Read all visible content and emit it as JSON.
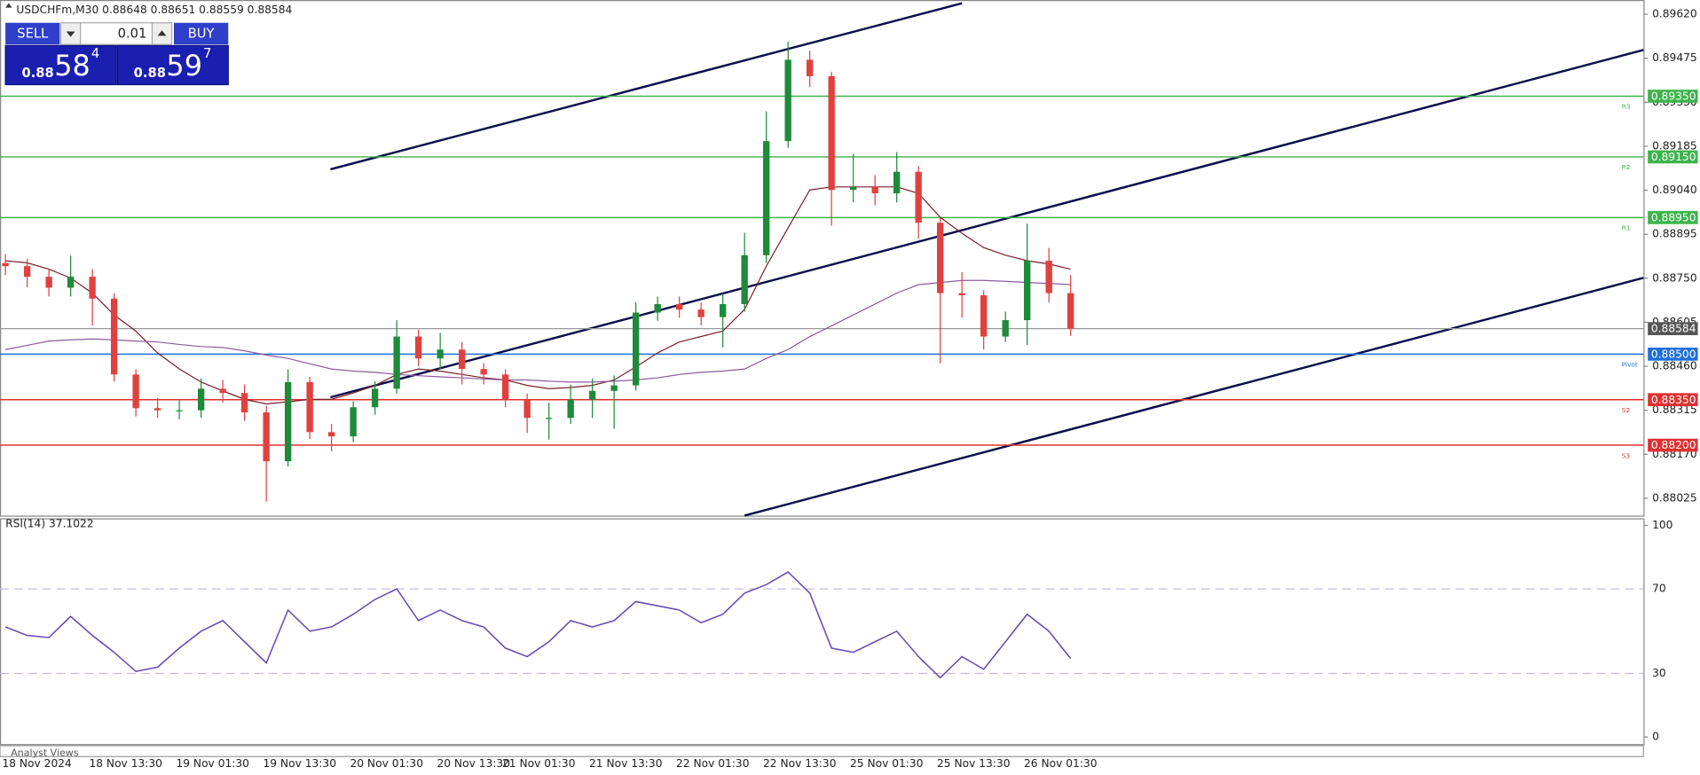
{
  "header": {
    "symbol": "USDCHFm,M30",
    "ohlc": [
      0.88648,
      0.88651,
      0.88559,
      0.88584
    ]
  },
  "trade_panel": {
    "sell": "SELL",
    "buy": "BUY",
    "lot": "0.01",
    "sell_price": {
      "lead": "0.88",
      "main": "58",
      "frac": "4"
    },
    "buy_price": {
      "lead": "0.88",
      "main": "59",
      "frac": "7"
    }
  },
  "footer_tab": "Analyst Views",
  "chart_data": [
    {
      "type": "candlestick",
      "categories": [
        "18 Nov 2024",
        null,
        null,
        null,
        "18 Nov 13:30",
        null,
        null,
        null,
        "19 Nov 01:30",
        null,
        null,
        null,
        "19 Nov 13:30",
        null,
        null,
        null,
        "20 Nov 01:30",
        null,
        null,
        null,
        "20 Nov 13:30",
        null,
        null,
        "21 Nov 01:30",
        null,
        null,
        null,
        "21 Nov 13:30",
        null,
        null,
        null,
        "22 Nov 01:30",
        null,
        null,
        null,
        "22 Nov 13:30",
        null,
        null,
        null,
        "25 Nov 01:30",
        null,
        null,
        null,
        "25 Nov 13:30",
        null,
        null,
        null,
        "26 Nov 01:30",
        null,
        null
      ],
      "open": [
        0.888,
        0.8879,
        0.88755,
        0.88719,
        0.88755,
        0.88683,
        0.88433,
        0.88322,
        0.88315,
        0.88315,
        0.88386,
        0.88372,
        0.88308,
        0.88147,
        0.88408,
        0.88243,
        0.88229,
        0.88325,
        0.88386,
        0.88558,
        0.88486,
        0.88515,
        0.88451,
        0.88433,
        0.8835,
        0.8829,
        0.8829,
        0.8835,
        0.88379,
        0.88397,
        0.88637,
        0.88665,
        0.88647,
        0.88622,
        0.88665,
        0.88826,
        0.89202,
        0.8947,
        0.89416,
        0.89041,
        0.89051,
        0.8903,
        0.89101,
        0.88933,
        0.88701,
        0.88694,
        0.88558,
        0.88612,
        0.88808,
        0.88701
      ],
      "high": [
        0.8883,
        0.88815,
        0.8878,
        0.88825,
        0.8878,
        0.887,
        0.8845,
        0.88355,
        0.8835,
        0.8842,
        0.88415,
        0.884,
        0.8833,
        0.8845,
        0.88425,
        0.8827,
        0.88345,
        0.8841,
        0.88612,
        0.8858,
        0.8857,
        0.8854,
        0.8847,
        0.8845,
        0.8837,
        0.8834,
        0.884,
        0.8842,
        0.8843,
        0.8867,
        0.8869,
        0.8869,
        0.8867,
        0.887,
        0.889,
        0.893,
        0.8953,
        0.895,
        0.8943,
        0.8916,
        0.8909,
        0.89166,
        0.8912,
        0.8895,
        0.8877,
        0.8871,
        0.8864,
        0.8893,
        0.8885,
        0.8876
      ],
      "low": [
        0.8876,
        0.8872,
        0.8869,
        0.8869,
        0.88594,
        0.8841,
        0.88295,
        0.8829,
        0.88285,
        0.8829,
        0.8834,
        0.8828,
        0.88014,
        0.8813,
        0.8822,
        0.8818,
        0.8821,
        0.883,
        0.8837,
        0.8846,
        0.8845,
        0.884,
        0.884,
        0.88325,
        0.8824,
        0.88218,
        0.8827,
        0.8829,
        0.88254,
        0.8838,
        0.8861,
        0.8862,
        0.88595,
        0.88522,
        0.8864,
        0.888,
        0.8918,
        0.8938,
        0.88923,
        0.89,
        0.8899,
        0.89,
        0.8888,
        0.8847,
        0.8862,
        0.88515,
        0.8854,
        0.8853,
        0.8867,
        0.8856
      ],
      "close": [
        0.8879,
        0.88755,
        0.88719,
        0.88755,
        0.88683,
        0.88433,
        0.88322,
        0.88315,
        0.88315,
        0.88386,
        0.88372,
        0.88308,
        0.88147,
        0.88408,
        0.88243,
        0.88229,
        0.88325,
        0.88386,
        0.88558,
        0.88486,
        0.88515,
        0.88451,
        0.88433,
        0.8835,
        0.8829,
        0.8829,
        0.8835,
        0.88379,
        0.88397,
        0.88637,
        0.88665,
        0.88647,
        0.88622,
        0.88665,
        0.88826,
        0.89202,
        0.8947,
        0.89416,
        0.89041,
        0.89051,
        0.8903,
        0.89101,
        0.88933,
        0.88701,
        0.88694,
        0.88558,
        0.88612,
        0.88808,
        0.88701,
        0.88584
      ],
      "up_color": "#1f8a3a",
      "down_color": "#e0413f",
      "series": [
        {
          "color": "#7a1f2b",
          "values": [
            0.88808,
            0.88801,
            0.8878,
            0.88751,
            0.88701,
            0.88629,
            0.88576,
            0.88504,
            0.88451,
            0.88408,
            0.88379,
            0.88351,
            0.88336,
            0.88343,
            0.88351,
            0.88351,
            0.88372,
            0.88397,
            0.88433,
            0.88451,
            0.88444,
            0.88433,
            0.88422,
            0.88415,
            0.88397,
            0.88386,
            0.8839,
            0.88397,
            0.88415,
            0.88458,
            0.88504,
            0.8854,
            0.88558,
            0.88576,
            0.88647,
            0.8879,
            0.88916,
            0.89041,
            0.89051,
            0.89051,
            0.89051,
            0.89051,
            0.8903,
            0.88951,
            0.88898,
            0.88851,
            0.88826,
            0.88808,
            0.88797,
            0.8878
          ]
        },
        {
          "color": "#8e5a9e",
          "values": [
            0.88515,
            0.88529,
            0.88543,
            0.88547,
            0.8855,
            0.88547,
            0.88543,
            0.8854,
            0.88532,
            0.88525,
            0.88522,
            0.88511,
            0.88497,
            0.88486,
            0.88468,
            0.88451,
            0.88444,
            0.8844,
            0.88433,
            0.88429,
            0.88425,
            0.88422,
            0.88418,
            0.88415,
            0.88415,
            0.88411,
            0.88408,
            0.88408,
            0.88411,
            0.88415,
            0.88422,
            0.88433,
            0.8844,
            0.88444,
            0.88451,
            0.88486,
            0.88515,
            0.88558,
            0.88593,
            0.88629,
            0.88665,
            0.88701,
            0.88729,
            0.88736,
            0.88743,
            0.88743,
            0.8874,
            0.88736,
            0.88733,
            0.88729
          ]
        }
      ],
      "levels": [
        {
          "name": "R3",
          "value": 0.8935,
          "label": "0.89350",
          "color": "#3cb44b"
        },
        {
          "name": "R2",
          "value": 0.8915,
          "label": "0.89150",
          "color": "#3cb44b"
        },
        {
          "name": "R1",
          "value": 0.8895,
          "label": "0.88950",
          "color": "#3cb44b"
        },
        {
          "name": "Pivot",
          "value": 0.885,
          "label": "0.88500",
          "color": "#1e6fd9"
        },
        {
          "name": "S2",
          "value": 0.8835,
          "label": "0.88350",
          "color": "#e03030"
        },
        {
          "name": "S3",
          "value": 0.882,
          "label": "0.88200",
          "color": "#e03030"
        }
      ],
      "current_price": 0.88584,
      "current_color": "#555555",
      "ylim": [
        0.87968,
        0.89667
      ],
      "yticks": [
        {
          "value": 0.8962,
          "label": "0.89620"
        },
        {
          "value": 0.89475,
          "label": "0.89475"
        },
        {
          "value": 0.8933,
          "label": "0.89330"
        },
        {
          "value": 0.89185,
          "label": "0.89185"
        },
        {
          "value": 0.8904,
          "label": "0.89040"
        },
        {
          "value": 0.88895,
          "label": "0.88895"
        },
        {
          "value": 0.8875,
          "label": "0.88750"
        },
        {
          "value": 0.88605,
          "label": "0.88605"
        },
        {
          "value": 0.8846,
          "label": "0.88460"
        },
        {
          "value": 0.88315,
          "label": "0.88315"
        },
        {
          "value": 0.8817,
          "label": "0.88170"
        },
        {
          "value": 0.88025,
          "label": "0.88025"
        }
      ]
    },
    {
      "type": "line",
      "title": "RSI(14) 37.1022",
      "color": "#6a4fb0",
      "values": [
        52,
        48,
        47,
        57,
        48,
        40,
        31,
        33,
        42,
        50,
        55,
        45,
        35,
        60,
        50,
        52,
        58,
        65,
        70,
        55,
        60,
        55,
        52,
        42,
        38,
        45,
        55,
        52,
        55,
        64,
        62,
        60,
        54,
        58,
        68,
        72,
        78,
        68,
        42,
        40,
        45,
        50,
        38,
        28,
        38,
        32,
        45,
        58,
        50,
        37.1
      ],
      "ylim": [
        -3.6,
        103.1
      ],
      "yticks": [
        100,
        70,
        30,
        0
      ]
    }
  ]
}
